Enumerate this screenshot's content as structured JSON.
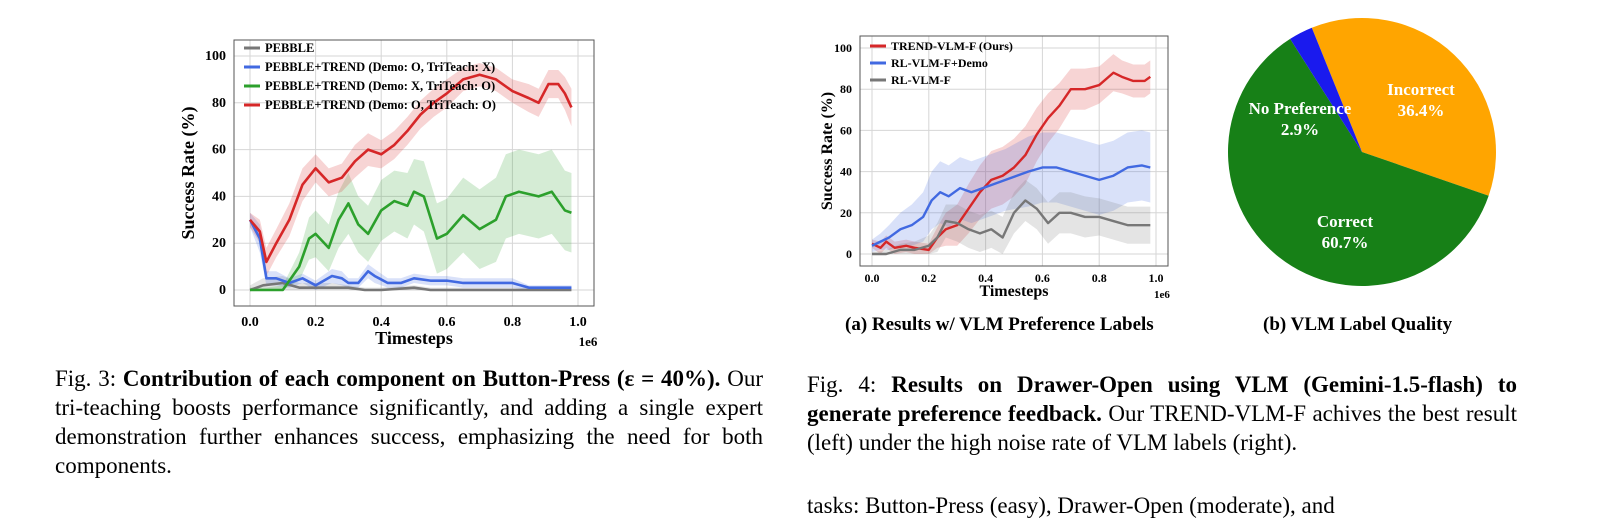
{
  "figure3": {
    "chart_data": {
      "type": "line",
      "xlabel": "Timesteps",
      "ylabel": "Success Rate (%)",
      "x_scale_label": "1e6",
      "xlim": [
        0,
        1.0
      ],
      "ylim": [
        0,
        100
      ],
      "x_ticks": [
        "0.0",
        "0.2",
        "0.4",
        "0.6",
        "0.8",
        "1.0"
      ],
      "y_ticks": [
        "0",
        "20",
        "40",
        "60",
        "80",
        "100"
      ],
      "grid": true,
      "legend_position": "top-left",
      "series": [
        {
          "name": "PEBBLE",
          "color": "#777777",
          "x": [
            0,
            0.04,
            0.1,
            0.15,
            0.2,
            0.25,
            0.3,
            0.35,
            0.4,
            0.5,
            0.55,
            0.6,
            0.7,
            0.8,
            0.9,
            0.98
          ],
          "y": [
            0,
            2,
            3,
            1,
            1,
            1,
            1,
            0,
            0,
            1,
            0,
            0,
            0,
            0,
            0,
            0
          ],
          "band": [
            2,
            3,
            3,
            2,
            2,
            2,
            1,
            1,
            1,
            1,
            1,
            1,
            1,
            1,
            1,
            1
          ]
        },
        {
          "name": "PEBBLE+TREND (Demo: O, TriTeach: X)",
          "color": "#4169e1",
          "x": [
            0,
            0.03,
            0.05,
            0.08,
            0.12,
            0.16,
            0.2,
            0.25,
            0.28,
            0.3,
            0.33,
            0.36,
            0.38,
            0.42,
            0.46,
            0.5,
            0.55,
            0.6,
            0.65,
            0.7,
            0.75,
            0.8,
            0.85,
            0.9,
            0.95,
            0.98
          ],
          "y": [
            30,
            22,
            5,
            5,
            3,
            5,
            2,
            6,
            5,
            3,
            3,
            8,
            6,
            3,
            3,
            5,
            4,
            4,
            3,
            3,
            3,
            3,
            1,
            1,
            1,
            1
          ],
          "band": [
            3,
            6,
            3,
            3,
            2,
            2,
            2,
            3,
            3,
            2,
            2,
            3,
            3,
            2,
            2,
            2,
            2,
            2,
            2,
            2,
            2,
            2,
            1,
            1,
            1,
            1
          ]
        },
        {
          "name": "PEBBLE+TREND (Demo: X, TriTeach: O)",
          "color": "#2ca02c",
          "x": [
            0,
            0.05,
            0.1,
            0.15,
            0.18,
            0.2,
            0.24,
            0.27,
            0.3,
            0.33,
            0.36,
            0.4,
            0.44,
            0.48,
            0.5,
            0.53,
            0.57,
            0.6,
            0.65,
            0.7,
            0.75,
            0.78,
            0.82,
            0.88,
            0.92,
            0.96,
            0.98
          ],
          "y": [
            0,
            0,
            0,
            10,
            22,
            24,
            18,
            30,
            37,
            28,
            24,
            34,
            38,
            36,
            42,
            40,
            22,
            24,
            32,
            26,
            30,
            40,
            42,
            40,
            42,
            34,
            33
          ],
          "band": [
            1,
            1,
            2,
            6,
            9,
            10,
            10,
            12,
            13,
            12,
            12,
            13,
            13,
            14,
            14,
            15,
            15,
            15,
            16,
            17,
            18,
            18,
            18,
            18,
            18,
            17,
            17
          ]
        },
        {
          "name": "PEBBLE+TREND (Demo: O, TriTeach: O)",
          "color": "#d62728",
          "x": [
            0,
            0.03,
            0.05,
            0.08,
            0.12,
            0.16,
            0.2,
            0.24,
            0.28,
            0.32,
            0.36,
            0.4,
            0.44,
            0.48,
            0.52,
            0.56,
            0.6,
            0.65,
            0.7,
            0.75,
            0.8,
            0.85,
            0.88,
            0.91,
            0.94,
            0.96,
            0.98
          ],
          "y": [
            30,
            25,
            12,
            20,
            30,
            45,
            52,
            46,
            48,
            55,
            60,
            58,
            62,
            68,
            75,
            80,
            84,
            90,
            92,
            90,
            85,
            82,
            80,
            88,
            88,
            84,
            78
          ],
          "band": [
            3,
            5,
            6,
            6,
            7,
            7,
            6,
            6,
            6,
            7,
            7,
            6,
            6,
            6,
            6,
            6,
            6,
            5,
            5,
            5,
            5,
            6,
            6,
            6,
            6,
            7,
            8
          ]
        }
      ]
    },
    "caption_label": "Fig. 3: ",
    "caption_bold": "Contribution of each component on Button-Press",
    "caption_bold2": "(ε = 40%).",
    "caption_text": " Our tri-teaching boosts performance significantly, and adding a single expert demonstration further enhances success, emphasizing the need for both components."
  },
  "figure4a": {
    "chart_data": {
      "type": "line",
      "xlabel": "Timesteps",
      "ylabel": "Success Rate (%)",
      "x_scale_label": "1e6",
      "xlim": [
        0,
        1.0
      ],
      "ylim": [
        0,
        100
      ],
      "x_ticks": [
        "0.0",
        "0.2",
        "0.4",
        "0.6",
        "0.8",
        "1.0"
      ],
      "y_ticks": [
        "0",
        "20",
        "40",
        "60",
        "80",
        "100"
      ],
      "grid": true,
      "legend_position": "top-left",
      "series": [
        {
          "name": "TREND-VLM-F (Ours)",
          "color": "#d62728",
          "x": [
            0,
            0.03,
            0.05,
            0.08,
            0.12,
            0.15,
            0.2,
            0.23,
            0.26,
            0.3,
            0.34,
            0.38,
            0.42,
            0.46,
            0.5,
            0.54,
            0.58,
            0.62,
            0.66,
            0.7,
            0.75,
            0.8,
            0.85,
            0.88,
            0.92,
            0.96,
            0.98
          ],
          "y": [
            5,
            3,
            6,
            3,
            4,
            3,
            2,
            8,
            12,
            14,
            22,
            30,
            36,
            38,
            42,
            48,
            58,
            66,
            72,
            80,
            80,
            82,
            88,
            86,
            84,
            84,
            86
          ],
          "band": [
            2,
            3,
            3,
            3,
            3,
            3,
            3,
            5,
            8,
            10,
            12,
            13,
            14,
            14,
            14,
            14,
            13,
            12,
            11,
            10,
            10,
            9,
            9,
            8,
            8,
            8,
            8
          ]
        },
        {
          "name": "RL-VLM-F+Demo",
          "color": "#4169e1",
          "x": [
            0,
            0.03,
            0.06,
            0.1,
            0.14,
            0.18,
            0.21,
            0.24,
            0.27,
            0.31,
            0.35,
            0.39,
            0.43,
            0.47,
            0.51,
            0.55,
            0.6,
            0.65,
            0.7,
            0.75,
            0.8,
            0.85,
            0.9,
            0.95,
            0.98
          ],
          "y": [
            4,
            6,
            8,
            12,
            14,
            18,
            26,
            30,
            28,
            32,
            30,
            32,
            34,
            36,
            38,
            40,
            42,
            42,
            40,
            38,
            36,
            38,
            42,
            43,
            42
          ],
          "band": [
            3,
            4,
            6,
            8,
            10,
            12,
            14,
            15,
            15,
            15,
            15,
            15,
            15,
            15,
            16,
            17,
            17,
            17,
            17,
            17,
            17,
            17,
            17,
            17,
            17
          ]
        },
        {
          "name": "RL-VLM-F",
          "color": "#777777",
          "x": [
            0,
            0.05,
            0.1,
            0.15,
            0.2,
            0.23,
            0.26,
            0.3,
            0.34,
            0.38,
            0.42,
            0.46,
            0.5,
            0.54,
            0.58,
            0.62,
            0.66,
            0.7,
            0.75,
            0.8,
            0.85,
            0.9,
            0.95,
            0.98
          ],
          "y": [
            0,
            0,
            2,
            2,
            4,
            8,
            16,
            15,
            12,
            10,
            12,
            8,
            20,
            26,
            22,
            15,
            20,
            20,
            18,
            18,
            16,
            14,
            14,
            14
          ],
          "band": [
            1,
            2,
            3,
            4,
            5,
            7,
            8,
            9,
            9,
            9,
            9,
            10,
            10,
            10,
            10,
            10,
            10,
            10,
            10,
            9,
            9,
            9,
            9,
            9
          ]
        }
      ]
    },
    "subcaption": "(a) Results w/ VLM Preference Labels"
  },
  "figure4b": {
    "chart_data": {
      "type": "pie",
      "slices": [
        {
          "label": "Incorrect",
          "percent_label": "36.4%",
          "value": 36.4,
          "color": "#ffa500"
        },
        {
          "label": "Correct",
          "percent_label": "60.7%",
          "value": 60.7,
          "color": "#178017"
        },
        {
          "label": "No Preference",
          "percent_label": "2.9%",
          "value": 2.9,
          "color": "#1a1aee"
        }
      ]
    },
    "subcaption": "(b) VLM Label Quality"
  },
  "figure4": {
    "caption_label": "Fig. 4: ",
    "caption_bold": "Results on Drawer-Open using VLM (Gemini-1.5-flash) to generate preference feedback.",
    "caption_text": " Our TREND-VLM-F achives the best result (left) under the high noise rate of VLM labels (right)."
  },
  "body_text_fragment": "tasks: Button-Press (easy), Drawer-Open (moderate), and"
}
